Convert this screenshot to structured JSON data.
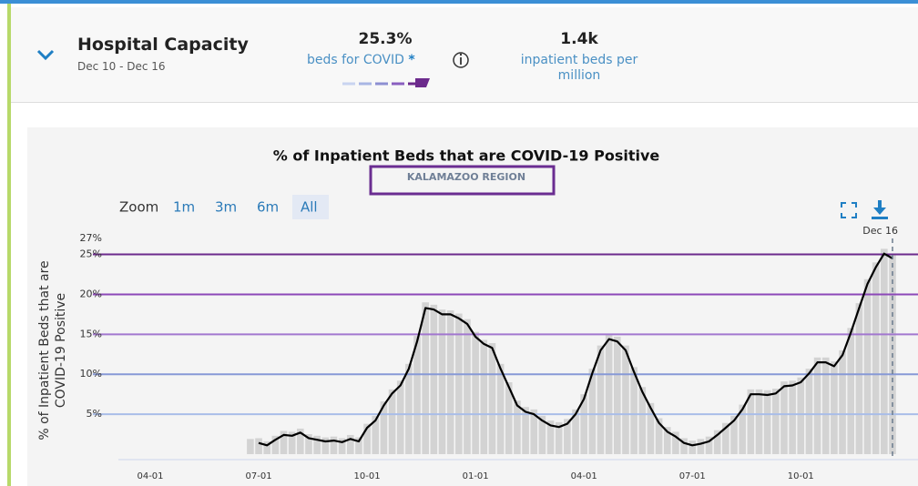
{
  "header": {
    "title": "Hospital Capacity",
    "dates": "Dec 10 - Dec 16",
    "metric1_value": "25.3%",
    "metric1_label": "beds for COVID",
    "metric1_asterisk": "*",
    "metric2_value": "1.4k",
    "metric2_label": "inpatient beds per million"
  },
  "zoom": {
    "label": "Zoom",
    "buttons": [
      "1m",
      "3m",
      "6m",
      "All"
    ],
    "selected": 3
  },
  "chart_data": {
    "type": "combo",
    "title": "% of Inpatient Beds that are COVID-19 Positive",
    "subtitle": "KALAMAZOO REGION",
    "ylabel": "% of Inpatient Beds that are COVID-19 Positive",
    "end_label": "Dec 16",
    "categories": [
      "04-01",
      null,
      null,
      null,
      null,
      null,
      null,
      null,
      null,
      null,
      null,
      null,
      null,
      "07-01",
      null,
      null,
      null,
      null,
      null,
      null,
      null,
      null,
      null,
      null,
      null,
      null,
      "10-01",
      null,
      null,
      null,
      null,
      null,
      null,
      null,
      null,
      null,
      null,
      null,
      null,
      "01-01",
      null,
      null,
      null,
      null,
      null,
      null,
      null,
      null,
      null,
      null,
      null,
      null,
      "04-01",
      null,
      null,
      null,
      null,
      null,
      null,
      null,
      null,
      null,
      null,
      null,
      null,
      "07-01",
      null,
      null,
      null,
      null,
      null,
      null,
      null,
      null,
      null,
      null,
      null,
      null,
      "10-01",
      null,
      null,
      null,
      null,
      null,
      null,
      null,
      null,
      null,
      null,
      null
    ],
    "series": [
      {
        "kind": "bar",
        "color": "#d3d3d3",
        "values": [
          null,
          null,
          null,
          null,
          null,
          null,
          null,
          null,
          null,
          null,
          null,
          null,
          1.9,
          2.0,
          1.6,
          2.3,
          2.9,
          2.8,
          3.2,
          2.5,
          2.3,
          2.1,
          2.2,
          2.0,
          2.4,
          2.1,
          3.8,
          4.8,
          6.6,
          8.1,
          9.2,
          11.3,
          14.8,
          19.0,
          18.7,
          18.1,
          18.0,
          17.6,
          16.9,
          15.3,
          14.3,
          13.9,
          11.3,
          9.0,
          6.7,
          5.9,
          5.6,
          4.8,
          4.2,
          4.0,
          4.4,
          5.6,
          7.5,
          10.7,
          13.6,
          15.0,
          14.7,
          13.6,
          10.9,
          8.4,
          6.4,
          4.5,
          3.4,
          2.8,
          2.0,
          1.7,
          1.9,
          2.2,
          3.0,
          3.9,
          4.8,
          6.2,
          8.1,
          8.1,
          8.0,
          8.2,
          9.1,
          9.2,
          9.6,
          10.7,
          12.1,
          12.1,
          11.6,
          13.0,
          15.8,
          18.9,
          21.9,
          24.0,
          25.7,
          25.1
        ]
      },
      {
        "kind": "line",
        "color": "#000000",
        "values": [
          null,
          null,
          null,
          null,
          null,
          null,
          null,
          null,
          null,
          null,
          null,
          null,
          null,
          1.4,
          1.1,
          1.8,
          2.4,
          2.3,
          2.7,
          2.0,
          1.8,
          1.6,
          1.7,
          1.5,
          1.9,
          1.6,
          3.3,
          4.2,
          6.1,
          7.6,
          8.6,
          10.7,
          14.1,
          18.3,
          18.1,
          17.5,
          17.5,
          17.0,
          16.3,
          14.7,
          13.8,
          13.3,
          10.7,
          8.4,
          6.1,
          5.3,
          5.0,
          4.2,
          3.6,
          3.4,
          3.8,
          5.0,
          6.9,
          10.1,
          13.0,
          14.4,
          14.1,
          13.0,
          10.3,
          7.8,
          5.8,
          3.9,
          2.8,
          2.2,
          1.4,
          1.1,
          1.3,
          1.6,
          2.4,
          3.3,
          4.2,
          5.6,
          7.5,
          7.5,
          7.4,
          7.6,
          8.5,
          8.6,
          9.0,
          10.1,
          11.5,
          11.5,
          11.0,
          12.4,
          15.2,
          18.3,
          21.3,
          23.4,
          25.1,
          24.5
        ]
      }
    ],
    "ylim": [
      0,
      27
    ],
    "yticks": [
      {
        "value": 5,
        "label": "5%"
      },
      {
        "value": 10,
        "label": "10%"
      },
      {
        "value": 15,
        "label": "15%"
      },
      {
        "value": 20,
        "label": "20%"
      },
      {
        "value": 25,
        "label": "25%"
      },
      {
        "value": 27,
        "label": "27%"
      }
    ],
    "reference_lines": [
      {
        "value": 5,
        "color": "#a9bde8"
      },
      {
        "value": 10,
        "color": "#8799d6"
      },
      {
        "value": 15,
        "color": "#a277cf"
      },
      {
        "value": 20,
        "color": "#8c48b8"
      },
      {
        "value": 25,
        "color": "#6c2a8c"
      }
    ],
    "grid": false
  }
}
